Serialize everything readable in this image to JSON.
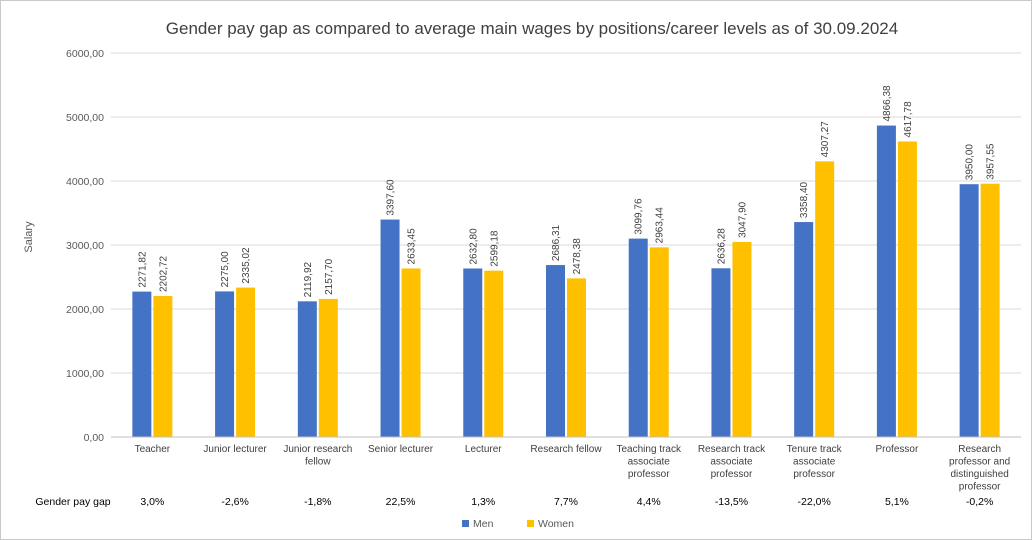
{
  "chart_data": {
    "type": "bar",
    "title": "Gender pay gap as compared to average main wages by positions/career levels as of 30.09.2024",
    "ylabel": "Salary",
    "xlabel": "",
    "ylim": [
      0,
      6000
    ],
    "yticks": [
      "0,00",
      "1000,00",
      "2000,00",
      "3000,00",
      "4000,00",
      "5000,00",
      "6000,00"
    ],
    "grid": true,
    "legend_position": "bottom",
    "categories": [
      [
        "Teacher"
      ],
      [
        "Junior lecturer"
      ],
      [
        "Junior research",
        "fellow"
      ],
      [
        "Senior lecturer"
      ],
      [
        "Lecturer"
      ],
      [
        "Research fellow"
      ],
      [
        "Teaching track",
        "associate",
        "professor"
      ],
      [
        "Research track",
        "associate",
        "professor"
      ],
      [
        "Tenure track",
        "associate",
        "professor"
      ],
      [
        "Professor"
      ],
      [
        "Research",
        "professor and",
        "distinguished",
        "professor"
      ]
    ],
    "series": [
      {
        "name": "Men",
        "color": "#4472C4",
        "values": [
          2271.82,
          2275.0,
          2119.92,
          3397.6,
          2632.8,
          2686.31,
          3099.76,
          2636.28,
          3358.4,
          4866.38,
          3950.0
        ],
        "labels": [
          "2271,82",
          "2275,00",
          "2119,92",
          "3397,60",
          "2632,80",
          "2686,31",
          "3099,76",
          "2636,28",
          "3358,40",
          "4866,38",
          "3950,00"
        ]
      },
      {
        "name": "Women",
        "color": "#FFC000",
        "values": [
          2202.72,
          2335.02,
          2157.7,
          2633.45,
          2599.18,
          2478.38,
          2963.44,
          3047.9,
          4307.27,
          4617.78,
          3957.55
        ],
        "labels": [
          "2202,72",
          "2335,02",
          "2157,70",
          "2633,45",
          "2599,18",
          "2478,38",
          "2963,44",
          "3047,90",
          "4307,27",
          "4617,78",
          "3957,55"
        ]
      }
    ],
    "table_row": {
      "label": "Gender pay gap",
      "values": [
        "3,0%",
        "-2,6%",
        "-1,8%",
        "22,5%",
        "1,3%",
        "7,7%",
        "4,4%",
        "-13,5%",
        "-22,0%",
        "5,1%",
        "-0,2%"
      ]
    }
  }
}
